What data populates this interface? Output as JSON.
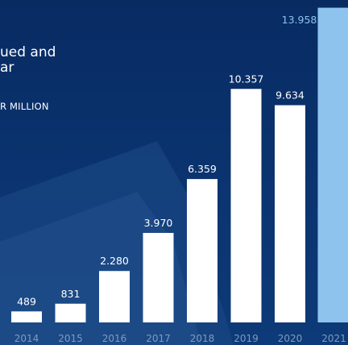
{
  "title": {
    "line1": "ued and",
    "line2": "ar"
  },
  "unit_label": "R MILLION",
  "colors": {
    "background": "#0a2f66",
    "bar": "#ffffff",
    "highlight_bar": "#8ec3ee",
    "highlight_label": "#8ec3ee",
    "value_label": "#ffffff",
    "tick_label": "#7f9ac0",
    "shape": "#1d4a86"
  },
  "chart_data": {
    "type": "bar",
    "categories": [
      "2014",
      "2015",
      "2016",
      "2017",
      "2018",
      "2019",
      "2020",
      "2021"
    ],
    "values": [
      489,
      831,
      2280,
      3970,
      6359,
      10357,
      9634,
      13958
    ],
    "value_labels": [
      "489",
      "831",
      "2.280",
      "3.970",
      "6.359",
      "10.357",
      "9.634",
      "13.958"
    ],
    "highlight_index": 7,
    "title": "",
    "xlabel": "",
    "ylabel": "",
    "ylim": [
      0,
      14300
    ],
    "grid": false,
    "legend": "none"
  }
}
